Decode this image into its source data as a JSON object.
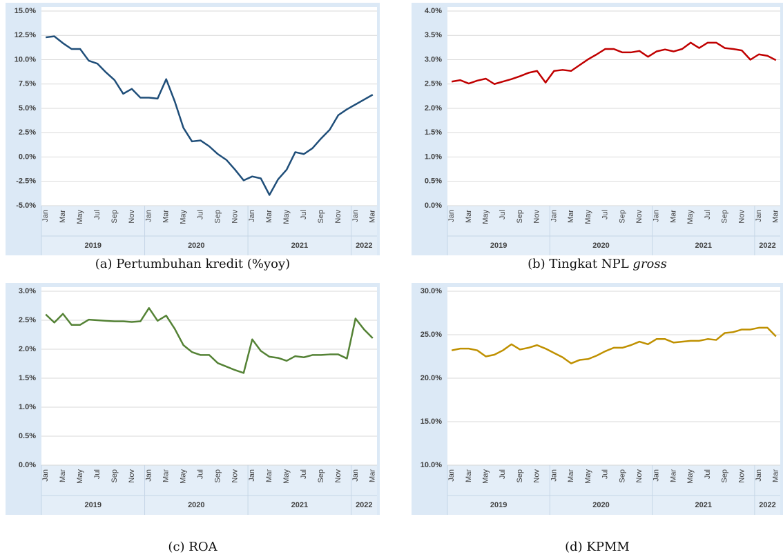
{
  "chart_data": [
    {
      "type": "line",
      "title": "(a) Pertumbuhan kredit (%yoy)",
      "color": "#1f4e79",
      "categories": [
        "Jan",
        null,
        "Mar",
        null,
        "May",
        null,
        "Jul",
        null,
        "Sep",
        null,
        "Nov",
        null,
        "Jan",
        null,
        "Mar",
        null,
        "May",
        null,
        "Jul",
        null,
        "Sep",
        null,
        "Nov",
        null,
        "Jan",
        null,
        "Mar",
        null,
        "May",
        null,
        "Jul",
        null,
        "Sep",
        null,
        "Nov",
        null,
        "Jan",
        null,
        "Mar"
      ],
      "year_labels": [
        "2019",
        "2020",
        "2021",
        "2022"
      ],
      "values": [
        12.3,
        12.4,
        11.7,
        11.1,
        11.1,
        9.9,
        9.6,
        8.7,
        7.9,
        6.5,
        7.0,
        6.1,
        6.1,
        6.0,
        8.0,
        5.7,
        3.0,
        1.6,
        1.7,
        1.1,
        0.3,
        -0.3,
        -1.3,
        -2.4,
        -2.0,
        -2.2,
        -3.9,
        -2.3,
        -1.3,
        0.5,
        0.3,
        0.9,
        1.9,
        2.8,
        4.3,
        4.9,
        5.4,
        5.9,
        6.4
      ],
      "ylim": [
        -5,
        15
      ],
      "yticks": [
        {
          "value": -5,
          "label": "-5.0%"
        },
        {
          "value": -2.5,
          "label": "-2.5%"
        },
        {
          "value": 0,
          "label": "0.0%"
        },
        {
          "value": 2.5,
          "label": "2.5%"
        },
        {
          "value": 5,
          "label": "5.0%"
        },
        {
          "value": 7.5,
          "label": "7.5%"
        },
        {
          "value": 10,
          "label": "10.0%"
        },
        {
          "value": 12.5,
          "label": "12.5%"
        },
        {
          "value": 15,
          "label": "15.0%"
        }
      ],
      "grid": true
    },
    {
      "type": "line",
      "title": "(b) Tingkat NPL ",
      "title_italic": "gross",
      "color": "#c00000",
      "categories": [
        "Jan",
        null,
        "Mar",
        null,
        "May",
        null,
        "Jul",
        null,
        "Sep",
        null,
        "Nov",
        null,
        "Jan",
        null,
        "Mar",
        null,
        "May",
        null,
        "Jul",
        null,
        "Sep",
        null,
        "Nov",
        null,
        "Jan",
        null,
        "Mar",
        null,
        "May",
        null,
        "Jul",
        null,
        "Sep",
        null,
        "Nov",
        null,
        "Jan",
        null,
        "Mar"
      ],
      "year_labels": [
        "2019",
        "2020",
        "2021",
        "2022"
      ],
      "values": [
        2.55,
        2.58,
        2.51,
        2.57,
        2.61,
        2.5,
        2.55,
        2.6,
        2.66,
        2.73,
        2.77,
        2.53,
        2.77,
        2.79,
        2.77,
        2.89,
        3.01,
        3.11,
        3.22,
        3.22,
        3.15,
        3.15,
        3.18,
        3.06,
        3.17,
        3.21,
        3.17,
        3.22,
        3.35,
        3.24,
        3.35,
        3.35,
        3.24,
        3.22,
        3.19,
        3.0,
        3.11,
        3.08,
        2.99
      ],
      "ylim": [
        0,
        4
      ],
      "yticks": [
        {
          "value": 0,
          "label": "0.0%"
        },
        {
          "value": 0.5,
          "label": "0.5%"
        },
        {
          "value": 1,
          "label": "1.0%"
        },
        {
          "value": 1.5,
          "label": "1.5%"
        },
        {
          "value": 2,
          "label": "2.0%"
        },
        {
          "value": 2.5,
          "label": "2.5%"
        },
        {
          "value": 3,
          "label": "3.0%"
        },
        {
          "value": 3.5,
          "label": "3.5%"
        },
        {
          "value": 4,
          "label": "4.0%"
        }
      ],
      "grid": true
    },
    {
      "type": "line",
      "title": "(c) ROA",
      "color": "#548235",
      "categories": [
        "Jan",
        null,
        "Mar",
        null,
        "May",
        null,
        "Jul",
        null,
        "Sep",
        null,
        "Nov",
        null,
        "Jan",
        null,
        "Mar",
        null,
        "May",
        null,
        "Jul",
        null,
        "Sep",
        null,
        "Nov",
        null,
        "Jan",
        null,
        "Mar",
        null,
        "May",
        null,
        "Jul",
        null,
        "Sep",
        null,
        "Nov",
        null,
        "Jan",
        null,
        "Mar"
      ],
      "year_labels": [
        "2019",
        "2020",
        "2021",
        "2022"
      ],
      "values": [
        2.6,
        2.46,
        2.61,
        2.42,
        2.42,
        2.51,
        2.5,
        2.49,
        2.48,
        2.48,
        2.47,
        2.48,
        2.71,
        2.49,
        2.58,
        2.35,
        2.07,
        1.95,
        1.9,
        1.9,
        1.76,
        1.7,
        1.64,
        1.59,
        2.17,
        1.97,
        1.87,
        1.85,
        1.8,
        1.88,
        1.86,
        1.9,
        1.9,
        1.91,
        1.91,
        1.84,
        2.53,
        2.34,
        2.19
      ],
      "ylim": [
        0,
        3
      ],
      "yticks": [
        {
          "value": 0,
          "label": "0.0%"
        },
        {
          "value": 0.5,
          "label": "0.5%"
        },
        {
          "value": 1,
          "label": "1.0%"
        },
        {
          "value": 1.5,
          "label": "1.5%"
        },
        {
          "value": 2,
          "label": "2.0%"
        },
        {
          "value": 2.5,
          "label": "2.5%"
        },
        {
          "value": 3,
          "label": "3.0%"
        }
      ],
      "grid": true
    },
    {
      "type": "line",
      "title": "(d) KPMM",
      "color": "#bf9000",
      "categories": [
        "Jan",
        null,
        "Mar",
        null,
        "May",
        null,
        "Jul",
        null,
        "Sep",
        null,
        "Nov",
        null,
        "Jan",
        null,
        "Mar",
        null,
        "May",
        null,
        "Jul",
        null,
        "Sep",
        null,
        "Nov",
        null,
        "Jan",
        null,
        "Mar",
        null,
        "May",
        null,
        "Jul",
        null,
        "Sep",
        null,
        "Nov",
        null,
        "Jan",
        null,
        "Mar"
      ],
      "year_labels": [
        "2019",
        "2020",
        "2021",
        "2022"
      ],
      "values": [
        23.2,
        23.4,
        23.4,
        23.2,
        22.5,
        22.7,
        23.2,
        23.9,
        23.3,
        23.5,
        23.8,
        23.4,
        22.9,
        22.4,
        21.7,
        22.1,
        22.2,
        22.6,
        23.1,
        23.5,
        23.5,
        23.8,
        24.2,
        23.9,
        24.5,
        24.5,
        24.1,
        24.2,
        24.3,
        24.3,
        24.5,
        24.4,
        25.2,
        25.3,
        25.6,
        25.6,
        25.8,
        25.8,
        24.8
      ],
      "ylim": [
        10,
        30
      ],
      "yticks": [
        {
          "value": 10,
          "label": "10.0%"
        },
        {
          "value": 15,
          "label": "15.0%"
        },
        {
          "value": 20,
          "label": "20.0%"
        },
        {
          "value": 25,
          "label": "25.0%"
        },
        {
          "value": 30,
          "label": "30.0%"
        }
      ],
      "grid": true
    }
  ]
}
